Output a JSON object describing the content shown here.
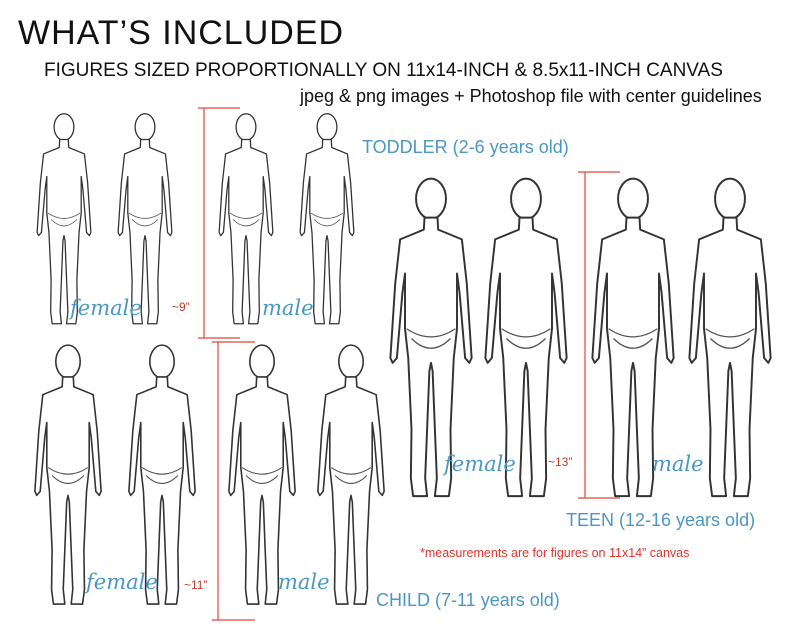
{
  "header": {
    "title": "WHAT’S INCLUDED",
    "subtitle": "FIGURES SIZED PROPORTIONALLY ON 11x14-INCH & 8.5x11-INCH CANVAS",
    "files_note": "jpeg & png images + Photoshop file with center guidelines"
  },
  "groups": {
    "toddler": {
      "label": "TODDLER (2-6 years old)",
      "measurement": "~9”",
      "female": "female",
      "male": "male"
    },
    "child": {
      "label": "CHILD (7-11 years old)",
      "measurement": "~11”",
      "female": "female",
      "male": "male"
    },
    "teen": {
      "label": "TEEN (12-16 years old)",
      "measurement": "~13”",
      "female": "female",
      "male": "male"
    }
  },
  "footnote": "*measurements are for figures on 11x14” canvas",
  "colors": {
    "accent": "#4b97c3",
    "measure_line": "#e2473c",
    "figure_stroke": "#333333"
  }
}
